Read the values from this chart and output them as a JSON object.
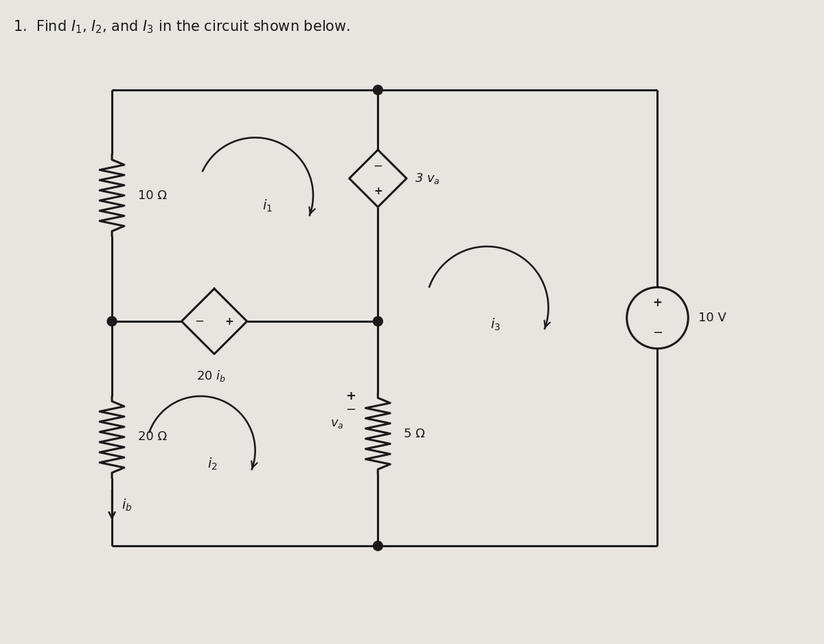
{
  "title": "1.  Find $I_1$, $I_2$, and $I_3$ in the circuit shown below.",
  "bg_color": "#e8e4df",
  "fg_color": "#1a1a1a",
  "resistor_10_label": "10 Ω",
  "resistor_20_label": "20 Ω",
  "resistor_5_label": "5 Ω",
  "source_label": "10 V",
  "lw": 2.2
}
